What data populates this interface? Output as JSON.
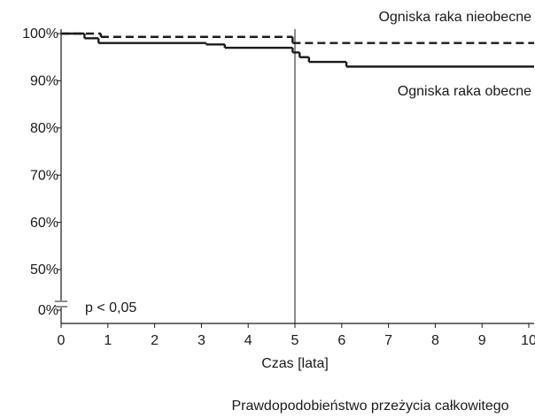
{
  "chart_data": {
    "type": "line",
    "step": "post",
    "caption": "Prawdopodobieństwo przeżycia całkowitego",
    "x_label": "Czas [lata]",
    "annotation": "p < 0,05",
    "xlim": [
      0,
      10.1
    ],
    "xticks": [
      0,
      1,
      2,
      3,
      4,
      5,
      6,
      7,
      8,
      9,
      10
    ],
    "ylim": [
      0,
      100
    ],
    "y_axis_break": true,
    "yticks": [
      {
        "value": 0,
        "label": "0%"
      },
      {
        "value": 50,
        "label": "50%"
      },
      {
        "value": 60,
        "label": "60%"
      },
      {
        "value": 70,
        "label": "70%"
      },
      {
        "value": 80,
        "label": "80%"
      },
      {
        "value": 90,
        "label": "90%"
      },
      {
        "value": 100,
        "label": "100%"
      }
    ],
    "vline": 5,
    "series": [
      {
        "name": "Ogniska raka nieobecne",
        "color": "#1a1a1a",
        "dash": true,
        "x": [
          0,
          0.85,
          4.95
        ],
        "values": [
          100,
          99.3,
          98
        ]
      },
      {
        "name": "Ogniska raka obecne",
        "color": "#1a1a1a",
        "dash": false,
        "x": [
          0,
          0.5,
          0.8,
          3.1,
          3.5,
          4.95,
          5.1,
          5.3,
          6.1
        ],
        "values": [
          100,
          99,
          98,
          97.7,
          97,
          96,
          95,
          94,
          93
        ]
      }
    ]
  }
}
